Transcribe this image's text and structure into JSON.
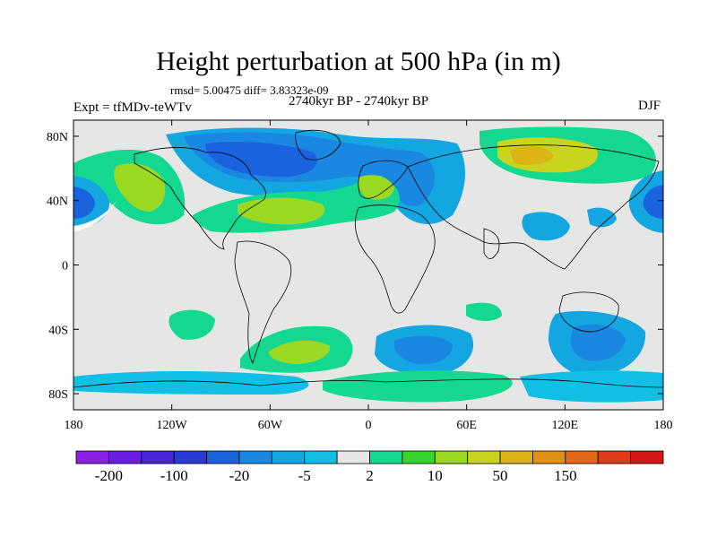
{
  "title": "Height perturbation at 500 hPa (in m)",
  "stats_line": "rmsd= 5.00475 diff= 3.83323e-09",
  "period": "2740kyr BP - 2740kyr BP",
  "experiment": "Expt = tfMDv-teWTv",
  "season": "DJF",
  "map": {
    "projection": "cylindrical-equidistant",
    "lon_range": [
      -180,
      180
    ],
    "lat_range": [
      -90,
      90
    ],
    "lat_ticks": [
      {
        "value": 80,
        "label": "80N"
      },
      {
        "value": 40,
        "label": "40N"
      },
      {
        "value": 0,
        "label": "0"
      },
      {
        "value": -40,
        "label": "40S"
      },
      {
        "value": -80,
        "label": "80S"
      }
    ],
    "lon_ticks": [
      {
        "value": -180,
        "label": "180"
      },
      {
        "value": -120,
        "label": "120W"
      },
      {
        "value": -60,
        "label": "60W"
      },
      {
        "value": 0,
        "label": "0"
      },
      {
        "value": 60,
        "label": "60E"
      },
      {
        "value": 120,
        "label": "120E"
      },
      {
        "value": 180,
        "label": "180"
      }
    ],
    "background_color": "#e6e6e6",
    "coastline_color": "#000000"
  },
  "colorbar": {
    "colors": [
      "#8c1fe6",
      "#6a1fe0",
      "#4a26d8",
      "#2a3ad6",
      "#1a62de",
      "#1a88e0",
      "#14a6e0",
      "#12bfe4",
      "#e6e6e6",
      "#14d890",
      "#38d42e",
      "#9ad821",
      "#c8d41e",
      "#dcb514",
      "#e09114",
      "#e2681a",
      "#e03a1c",
      "#d6181a"
    ],
    "labels": [
      "-200",
      "-100",
      "-20",
      "-5",
      "2",
      "10",
      "50",
      "150"
    ]
  }
}
